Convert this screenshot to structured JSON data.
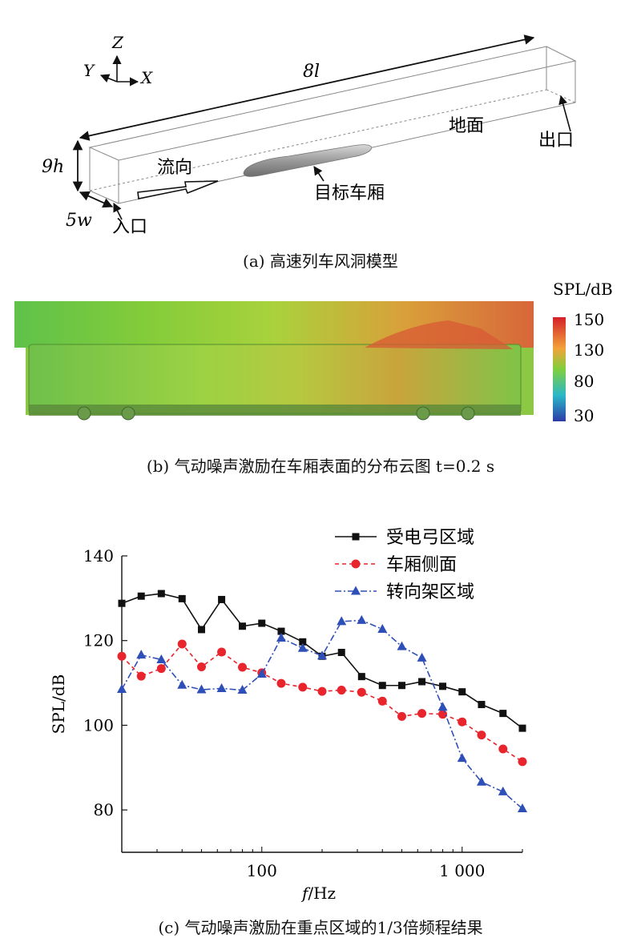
{
  "panel_a": {
    "axes": {
      "z": "Z",
      "y": "Y",
      "x": "X"
    },
    "length_label": "8l",
    "height_label": "9h",
    "width_label": "5w",
    "flow_label": "流向",
    "target_label": "目标车厢",
    "ground_label": "地面",
    "outlet_label": "出口",
    "inlet_label": "入口",
    "caption": "(a) 高速列车风洞模型"
  },
  "panel_b": {
    "colorbar_title": "SPL/dB",
    "colorbar_ticks": [
      "150",
      "130",
      "80",
      "30"
    ],
    "colorbar_colors": [
      "#d4202a",
      "#f2a33a",
      "#7fcf3d",
      "#2ab8c8",
      "#2b3ba8"
    ],
    "caption": "(b) 气动噪声激励在车厢表面的分布云图 t=0.2 s"
  },
  "panel_c": {
    "caption": "(c) 气动噪声激励在重点区域的1/3倍频程结果"
  },
  "chart_data": {
    "type": "line",
    "xlabel": "f/Hz",
    "ylabel": "SPL/dB",
    "x_scale": "log",
    "xlim": [
      20,
      2000
    ],
    "ylim": [
      70,
      140
    ],
    "x_ticks": [
      {
        "value": 100,
        "label": "100"
      },
      {
        "value": 1000,
        "label": "1 000"
      }
    ],
    "y_ticks": [
      80,
      100,
      120,
      140
    ],
    "legend_position": "top-right",
    "x": [
      20,
      25,
      31.5,
      40,
      50,
      63,
      80,
      100,
      125,
      160,
      200,
      250,
      315,
      400,
      500,
      630,
      800,
      1000,
      1250,
      1600,
      2000
    ],
    "series": [
      {
        "name": "受电弓区域",
        "color": "#111111",
        "marker": "square",
        "dash": "",
        "values": [
          128.8,
          130.5,
          131.1,
          129.9,
          122.6,
          129.7,
          123.4,
          124.1,
          122.2,
          119.7,
          116.3,
          117.2,
          111.5,
          109.4,
          109.4,
          110.3,
          109.2,
          107.9,
          104.9,
          102.8,
          99.3
        ]
      },
      {
        "name": "车厢侧面",
        "color": "#e8242c",
        "marker": "circle",
        "dash": "5,4",
        "values": [
          116.3,
          111.6,
          113.4,
          119.2,
          113.8,
          117.3,
          113.7,
          112.4,
          109.9,
          109.0,
          108.0,
          108.3,
          107.8,
          105.7,
          102.1,
          102.8,
          102.6,
          100.8,
          97.7,
          94.4,
          91.4
        ]
      },
      {
        "name": "转向架区域",
        "color": "#2f4fb8",
        "marker": "triangle",
        "dash": "8,3,2,3",
        "values": [
          108.5,
          116.6,
          115.5,
          109.5,
          108.4,
          108.7,
          108.3,
          112.1,
          120.6,
          118.2,
          116.4,
          124.5,
          124.8,
          122.7,
          118.6,
          115.9,
          104.3,
          92.2,
          86.6,
          84.3,
          80.3
        ]
      }
    ]
  }
}
